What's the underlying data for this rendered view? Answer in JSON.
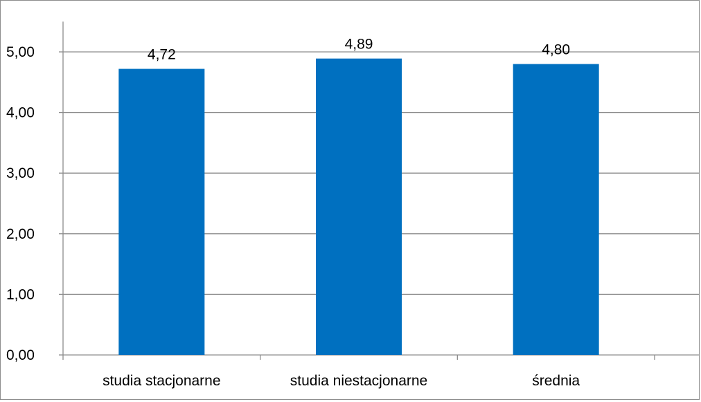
{
  "chart_data": {
    "type": "bar",
    "categories": [
      "studia stacjonarne",
      "studia niestacjonarne",
      "średnia"
    ],
    "series": [
      {
        "values": [
          4.72,
          4.89,
          4.8
        ]
      }
    ],
    "data_labels": [
      "4,72",
      "4,89",
      "4,80"
    ],
    "yticks": [
      "0,00",
      "1,00",
      "2,00",
      "3,00",
      "4,00",
      "5,00"
    ],
    "ylim": [
      0,
      5.5
    ],
    "title": "",
    "xlabel": "",
    "ylabel": "",
    "grid": true,
    "legend": "none",
    "colors": {
      "bar": "#0070C0",
      "gridline": "#8c8c8c",
      "axis": "#8c8c8c"
    }
  }
}
